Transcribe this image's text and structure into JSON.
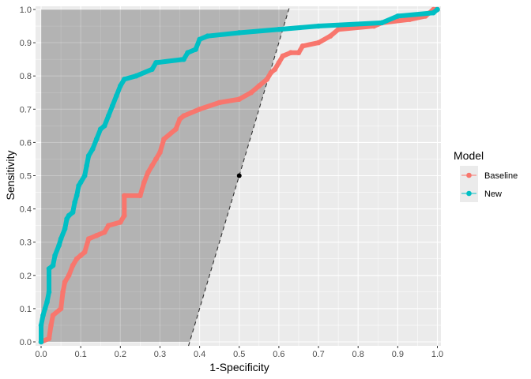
{
  "chart_data": {
    "type": "line",
    "xlabel": "1-Specificity",
    "ylabel": "Sensitivity",
    "xlim": [
      0,
      1
    ],
    "ylim": [
      0,
      1
    ],
    "x_ticks": [
      "0.0",
      "0.1",
      "0.2",
      "0.3",
      "0.4",
      "0.5",
      "0.6",
      "0.7",
      "0.8",
      "0.9",
      "1.0"
    ],
    "y_ticks": [
      "0.0",
      "0.1",
      "0.2",
      "0.3",
      "0.4",
      "0.5",
      "0.6",
      "0.7",
      "0.8",
      "0.9",
      "1.0"
    ],
    "grid": true,
    "legend": {
      "title": "Model",
      "placement": "right"
    },
    "reference_line": {
      "style": "dashed",
      "through": [
        [
          0.375,
          0
        ],
        [
          0.625,
          1
        ]
      ],
      "shaded_region": "left of line"
    },
    "reference_point": [
      0.5,
      0.5
    ],
    "series": [
      {
        "name": "Baseline",
        "color": "#F8766D",
        "points": [
          [
            0,
            0
          ],
          [
            0.02,
            0.01
          ],
          [
            0.025,
            0.05
          ],
          [
            0.03,
            0.08
          ],
          [
            0.05,
            0.1
          ],
          [
            0.055,
            0.15
          ],
          [
            0.06,
            0.18
          ],
          [
            0.07,
            0.2
          ],
          [
            0.08,
            0.23
          ],
          [
            0.09,
            0.25
          ],
          [
            0.1,
            0.26
          ],
          [
            0.11,
            0.27
          ],
          [
            0.12,
            0.31
          ],
          [
            0.14,
            0.32
          ],
          [
            0.16,
            0.33
          ],
          [
            0.17,
            0.35
          ],
          [
            0.2,
            0.36
          ],
          [
            0.21,
            0.38
          ],
          [
            0.21,
            0.44
          ],
          [
            0.25,
            0.44
          ],
          [
            0.26,
            0.48
          ],
          [
            0.27,
            0.51
          ],
          [
            0.28,
            0.53
          ],
          [
            0.29,
            0.55
          ],
          [
            0.3,
            0.57
          ],
          [
            0.31,
            0.61
          ],
          [
            0.34,
            0.64
          ],
          [
            0.35,
            0.67
          ],
          [
            0.36,
            0.68
          ],
          [
            0.4,
            0.7
          ],
          [
            0.45,
            0.72
          ],
          [
            0.5,
            0.73
          ],
          [
            0.53,
            0.75
          ],
          [
            0.55,
            0.77
          ],
          [
            0.57,
            0.79
          ],
          [
            0.58,
            0.81
          ],
          [
            0.59,
            0.82
          ],
          [
            0.6,
            0.84
          ],
          [
            0.61,
            0.86
          ],
          [
            0.63,
            0.87
          ],
          [
            0.65,
            0.87
          ],
          [
            0.66,
            0.89
          ],
          [
            0.7,
            0.9
          ],
          [
            0.73,
            0.92
          ],
          [
            0.75,
            0.94
          ],
          [
            0.84,
            0.95
          ],
          [
            0.86,
            0.96
          ],
          [
            0.93,
            0.97
          ],
          [
            0.97,
            0.98
          ],
          [
            0.99,
            1
          ],
          [
            1,
            1
          ]
        ]
      },
      {
        "name": "New",
        "color": "#00BFC4",
        "points": [
          [
            0,
            0
          ],
          [
            0,
            0.05
          ],
          [
            0.005,
            0.08
          ],
          [
            0.01,
            0.1
          ],
          [
            0.015,
            0.12
          ],
          [
            0.02,
            0.15
          ],
          [
            0.02,
            0.22
          ],
          [
            0.03,
            0.23
          ],
          [
            0.035,
            0.26
          ],
          [
            0.045,
            0.29
          ],
          [
            0.05,
            0.31
          ],
          [
            0.06,
            0.34
          ],
          [
            0.065,
            0.37
          ],
          [
            0.07,
            0.38
          ],
          [
            0.08,
            0.39
          ],
          [
            0.085,
            0.42
          ],
          [
            0.09,
            0.44
          ],
          [
            0.095,
            0.47
          ],
          [
            0.1,
            0.48
          ],
          [
            0.11,
            0.5
          ],
          [
            0.115,
            0.53
          ],
          [
            0.12,
            0.56
          ],
          [
            0.13,
            0.58
          ],
          [
            0.14,
            0.61
          ],
          [
            0.15,
            0.64
          ],
          [
            0.16,
            0.65
          ],
          [
            0.17,
            0.68
          ],
          [
            0.18,
            0.71
          ],
          [
            0.19,
            0.74
          ],
          [
            0.2,
            0.77
          ],
          [
            0.21,
            0.79
          ],
          [
            0.24,
            0.8
          ],
          [
            0.28,
            0.82
          ],
          [
            0.29,
            0.84
          ],
          [
            0.36,
            0.85
          ],
          [
            0.37,
            0.87
          ],
          [
            0.39,
            0.88
          ],
          [
            0.4,
            0.91
          ],
          [
            0.42,
            0.92
          ],
          [
            0.5,
            0.93
          ],
          [
            0.6,
            0.94
          ],
          [
            0.7,
            0.95
          ],
          [
            0.86,
            0.96
          ],
          [
            0.9,
            0.98
          ],
          [
            0.99,
            0.99
          ],
          [
            1,
            1
          ]
        ]
      }
    ]
  }
}
